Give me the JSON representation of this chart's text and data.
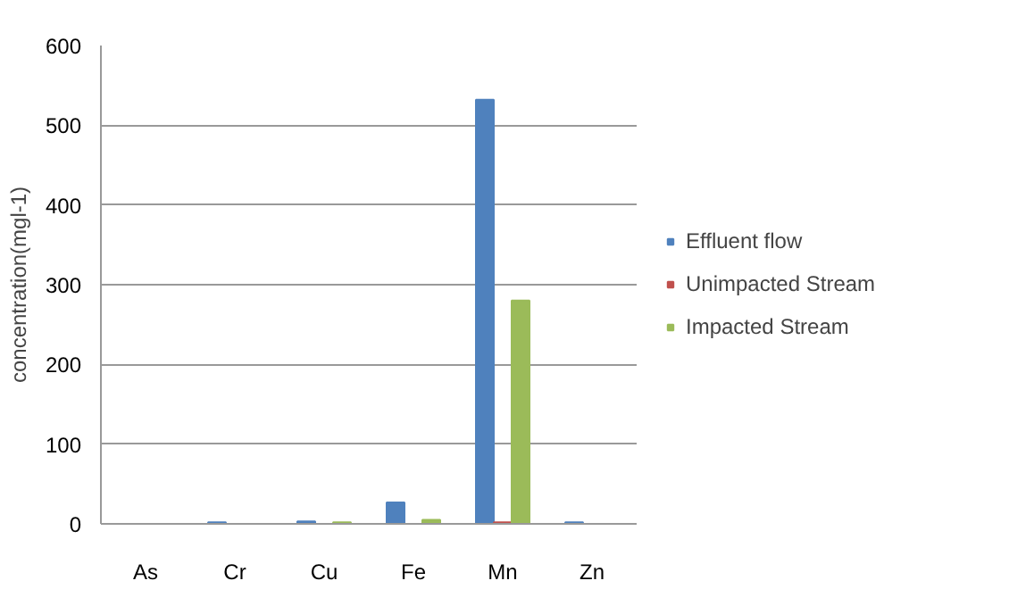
{
  "chart_data": {
    "type": "bar",
    "ylabel": "concentration(mgl-1)",
    "categories": [
      "As",
      "Cr",
      "Cu",
      "Fe",
      "Mn",
      "Zn"
    ],
    "series": [
      {
        "name": "Effluent flow",
        "color": "#4f81bd",
        "values": [
          0,
          2,
          3,
          27,
          532,
          2
        ]
      },
      {
        "name": "Unimpacted Stream",
        "color": "#c0504d",
        "values": [
          0,
          0,
          0,
          0,
          2,
          0
        ]
      },
      {
        "name": "Impacted Stream",
        "color": "#9bbb59",
        "values": [
          0,
          0,
          2,
          5,
          280,
          0
        ]
      }
    ],
    "ylim": [
      0,
      600
    ],
    "yticks": [
      0,
      100,
      200,
      300,
      400,
      500,
      600
    ],
    "grid": "y",
    "legend": "right"
  }
}
